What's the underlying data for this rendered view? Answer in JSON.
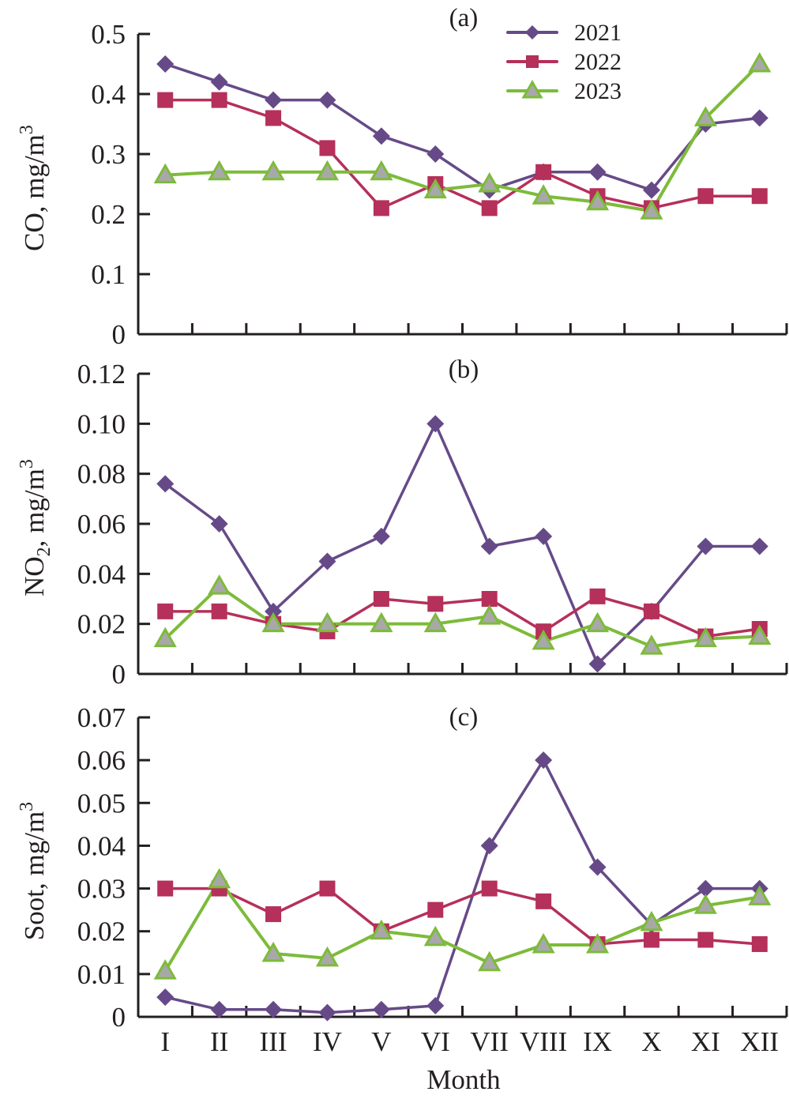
{
  "chart_data": {
    "type": "line",
    "categories": [
      "I",
      "II",
      "III",
      "IV",
      "V",
      "VI",
      "VII",
      "VIII",
      "IX",
      "X",
      "XI",
      "XII"
    ],
    "xlabel": "Month",
    "legend": {
      "placement": "top-right of panel (a)",
      "entries": [
        {
          "name": "2021",
          "marker": "diamond",
          "color": "#664a88"
        },
        {
          "name": "2022",
          "marker": "square",
          "color": "#b5305a"
        },
        {
          "name": "2023",
          "marker": "triangle",
          "color": "#7dbb3a",
          "fill": "#a8a8a8"
        }
      ]
    },
    "panels": [
      {
        "label": "(a)",
        "ylabel": "CO, mg/m",
        "ylabel_sup": "3",
        "ylabel_sub": "",
        "ylim": [
          0,
          0.5
        ],
        "yticks": [
          0,
          0.1,
          0.2,
          0.3,
          0.4,
          0.5
        ],
        "ytick_labels": [
          "0",
          "0.1",
          "0.2",
          "0.3",
          "0.4",
          "0.5"
        ],
        "series": [
          {
            "name": "2021",
            "values": [
              0.45,
              0.42,
              0.39,
              0.39,
              0.33,
              0.3,
              0.24,
              0.27,
              0.27,
              0.24,
              0.35,
              0.36
            ]
          },
          {
            "name": "2022",
            "values": [
              0.39,
              0.39,
              0.36,
              0.31,
              0.21,
              0.25,
              0.21,
              0.27,
              0.23,
              0.21,
              0.23,
              0.23
            ]
          },
          {
            "name": "2023",
            "values": [
              0.265,
              0.27,
              0.27,
              0.27,
              0.27,
              0.24,
              0.25,
              0.23,
              0.22,
              0.205,
              0.36,
              0.45
            ]
          }
        ]
      },
      {
        "label": "(b)",
        "ylabel": "NO",
        "ylabel_sub": "2",
        "ylabel_rest": ", mg/m",
        "ylabel_sup": "3",
        "ylim": [
          0,
          0.12
        ],
        "yticks": [
          0,
          0.02,
          0.04,
          0.06,
          0.08,
          0.1,
          0.12
        ],
        "ytick_labels": [
          "0",
          "0.02",
          "0.04",
          "0.06",
          "0.08",
          "0.10",
          "0.12"
        ],
        "series": [
          {
            "name": "2021",
            "values": [
              0.076,
              0.06,
              0.025,
              0.045,
              0.055,
              0.1,
              0.051,
              0.055,
              0.004,
              0.025,
              0.051,
              0.051
            ]
          },
          {
            "name": "2022",
            "values": [
              0.025,
              0.025,
              0.02,
              0.017,
              0.03,
              0.028,
              0.03,
              0.017,
              0.031,
              0.025,
              0.015,
              0.018
            ]
          },
          {
            "name": "2023",
            "values": [
              0.014,
              0.035,
              0.02,
              0.02,
              0.02,
              0.02,
              0.023,
              0.013,
              0.02,
              0.011,
              0.014,
              0.015
            ]
          }
        ]
      },
      {
        "label": "(c)",
        "ylabel": "Soot, mg/m",
        "ylabel_sup": "3",
        "ylabel_sub": "",
        "ylim": [
          0,
          0.07
        ],
        "yticks": [
          0,
          0.01,
          0.02,
          0.03,
          0.04,
          0.05,
          0.06,
          0.07
        ],
        "ytick_labels": [
          "0",
          "0.01",
          "0.02",
          "0.03",
          "0.04",
          "0.05",
          "0.06",
          "0.07"
        ],
        "series": [
          {
            "name": "2021",
            "values": [
              0.0046,
              0.0017,
              0.0017,
              0.001,
              0.0017,
              0.0026,
              0.04,
              0.06,
              0.035,
              0.0215,
              0.03,
              0.03
            ]
          },
          {
            "name": "2022",
            "values": [
              0.03,
              0.03,
              0.024,
              0.03,
              0.02,
              0.025,
              0.03,
              0.027,
              0.017,
              0.018,
              0.018,
              0.017
            ]
          },
          {
            "name": "2023",
            "values": [
              0.0107,
              0.032,
              0.0148,
              0.0137,
              0.02,
              0.0185,
              0.0126,
              0.0168,
              0.0168,
              0.022,
              0.026,
              0.028
            ]
          }
        ]
      }
    ]
  }
}
